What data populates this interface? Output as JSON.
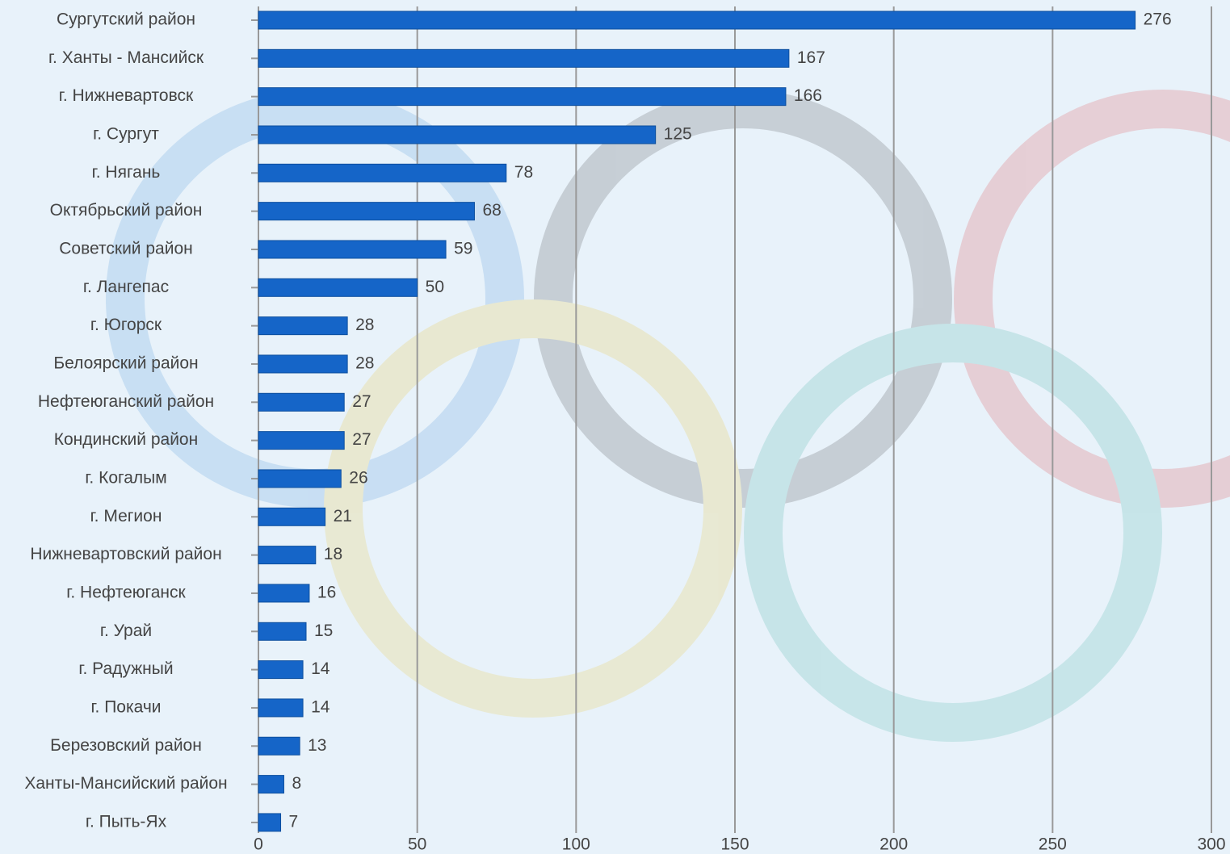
{
  "chart_data": {
    "type": "bar",
    "orientation": "horizontal",
    "categories": [
      "Сургутский район",
      "г. Ханты - Мансийск",
      "г. Нижневартовск",
      "г. Сургут",
      "г. Нягань",
      "Октябрьский район",
      "Советский район",
      "г. Лангепас",
      "г. Югорск",
      "Белоярский район",
      "Нефтеюганский район",
      "Кондинский район",
      "г. Когалым",
      "г. Мегион",
      "Нижневартовский район",
      "г. Нефтеюганск",
      "г. Урай",
      "г. Радужный",
      "г. Покачи",
      "Березовский район",
      "Ханты-Мансийский район",
      "г. Пыть-Ях"
    ],
    "values": [
      276,
      167,
      166,
      125,
      78,
      68,
      59,
      50,
      28,
      28,
      27,
      27,
      26,
      21,
      18,
      16,
      15,
      14,
      14,
      13,
      8,
      7
    ],
    "color": "#1565c8",
    "xlim": [
      0,
      300
    ],
    "xticks": [
      0,
      50,
      100,
      150,
      200,
      250,
      300
    ],
    "grid": true
  }
}
